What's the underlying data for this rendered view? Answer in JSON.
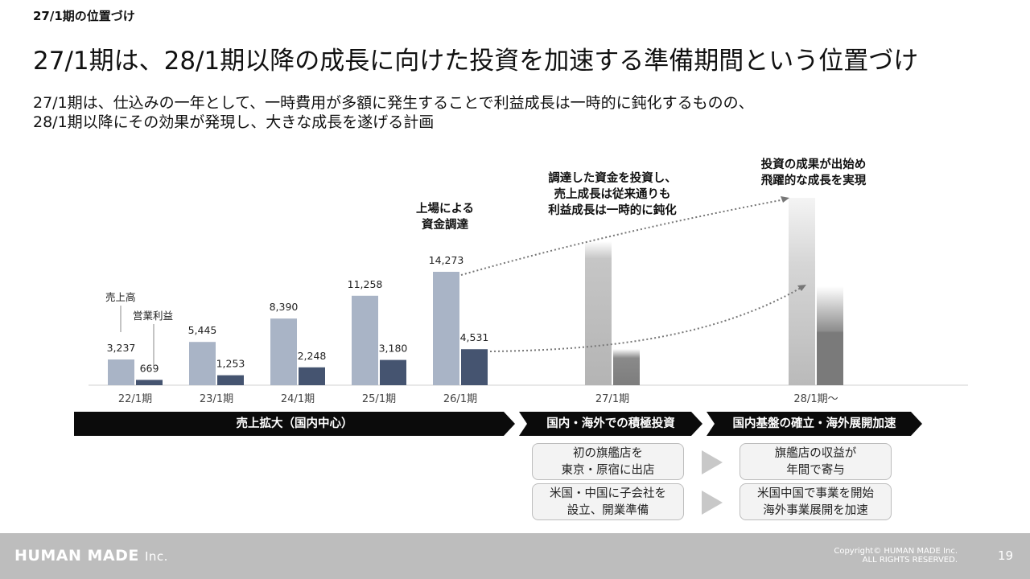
{
  "header": {
    "section_label": "27/1期の位置づけ",
    "title": "27/1期は、28/1期以降の成長に向けた投資を加速する準備期間という位置づけ",
    "subtitle_line1": "27/1期は、仕込みの一年として、一時費用が多額に発生することで利益成長は一時的に鈍化するものの、",
    "subtitle_line2": "28/1期以降にその効果が発現し、大きな成長を遂げる計画"
  },
  "chart_data": {
    "type": "bar",
    "categories": [
      "22/1期",
      "23/1期",
      "24/1期",
      "25/1期",
      "26/1期",
      "27/1期",
      "28/1期～"
    ],
    "series": [
      {
        "name": "売上高",
        "values": [
          3237,
          5445,
          8390,
          11258,
          14273,
          null,
          null
        ],
        "color": "#a9b4c6"
      },
      {
        "name": "営業利益",
        "values": [
          669,
          1253,
          2248,
          3180,
          4531,
          null,
          null
        ],
        "color": "#455470"
      }
    ],
    "value_labels": {
      "sales": [
        "3,237",
        "5,445",
        "8,390",
        "11,258",
        "14,273"
      ],
      "profit": [
        "669",
        "1,253",
        "2,248",
        "3,180",
        "4,531"
      ]
    },
    "legend": {
      "sales": "売上高",
      "profit": "営業利益"
    },
    "projection_note": "27/1期 and 28/1期～ shown as unlabeled gradient bars (projection)",
    "ylim": [
      0,
      16000
    ]
  },
  "callouts": {
    "ipo": [
      "上場による",
      "資金調達"
    ],
    "fy27": [
      "調達した資金を投資し、",
      "売上成長は従来通りも",
      "利益成長は一時的に鈍化"
    ],
    "fy28": [
      "投資の成果が出始め",
      "飛躍的な成長を実現"
    ]
  },
  "phases": {
    "p1": "売上拡大（国内中心）",
    "p2": "国内・海外での積極投資",
    "p3": "国内基盤の確立・海外展開加速"
  },
  "boxes": {
    "b11": "初の旗艦店を\n東京・原宿に出店",
    "b12": "米国・中国に子会社を\n設立、開業準備",
    "b21": "旗艦店の収益が\n年間で寄与",
    "b22": "米国中国で事業を開始\n海外事業展開を加速"
  },
  "footer": {
    "logo": "HUMAN MADE",
    "logo_suffix": "Inc.",
    "copyright_line1": "Copyright© HUMAN MADE Inc.",
    "copyright_line2": "ALL RIGHTS RESERVED.",
    "page_number": "19"
  },
  "colors": {
    "sales": "#a9b4c6",
    "profit": "#455470",
    "banner": "#0b0b0b",
    "footer": "#bdbdbd"
  }
}
